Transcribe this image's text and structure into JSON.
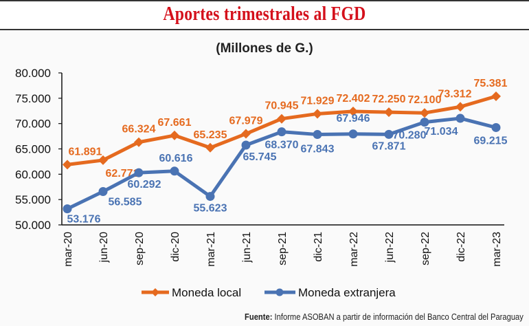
{
  "header": {
    "title": "Aportes trimestrales al FGD"
  },
  "chart_data": {
    "type": "line",
    "title": "Aportes trimestrales al FGD",
    "subtitle": "(Millones de G.)",
    "xlabel": "",
    "ylabel": "",
    "categories": [
      "mar-20",
      "jun-20",
      "sep-20",
      "dic-20",
      "mar-21",
      "jun-21",
      "sep-21",
      "dic-21",
      "mar-22",
      "jun-22",
      "sep-22",
      "dic-22",
      "mar-23"
    ],
    "series": [
      {
        "name": "Moneda local",
        "color": "#e56a1f",
        "marker": "diamond",
        "values": [
          61891,
          62771,
          66324,
          67661,
          65235,
          67979,
          70945,
          71929,
          72402,
          72250,
          72100,
          73312,
          75381
        ],
        "labels": [
          "61.891",
          "62.771",
          "66.324",
          "67.661",
          "65.235",
          "67.979",
          "70.945",
          "71.929",
          "72.402",
          "72.250",
          "72.100",
          "73.312",
          "75.381"
        ]
      },
      {
        "name": "Moneda extranjera",
        "color": "#4a73b3",
        "marker": "circle",
        "values": [
          53176,
          56585,
          60292,
          60616,
          55623,
          65745,
          68370,
          67843,
          67946,
          67871,
          70280,
          71034,
          69215
        ],
        "labels": [
          "53.176",
          "56.585",
          "60.292",
          "60.616",
          "55.623",
          "65.745",
          "68.370",
          "67.843",
          "67.946",
          "67.871",
          "70.280",
          "71.034",
          "69.215"
        ]
      }
    ],
    "ylim": [
      50000,
      80000
    ],
    "yticks": [
      50000,
      55000,
      60000,
      65000,
      70000,
      75000,
      80000
    ],
    "ytick_labels": [
      "50.000",
      "55.000",
      "60.000",
      "65.000",
      "70.000",
      "75.000",
      "80.000"
    ],
    "grid": false,
    "legend": "bottom"
  },
  "source": {
    "label": "Fuente:",
    "text": "Informe ASOBAN a partir de información del Banco Central del Paraguay"
  }
}
